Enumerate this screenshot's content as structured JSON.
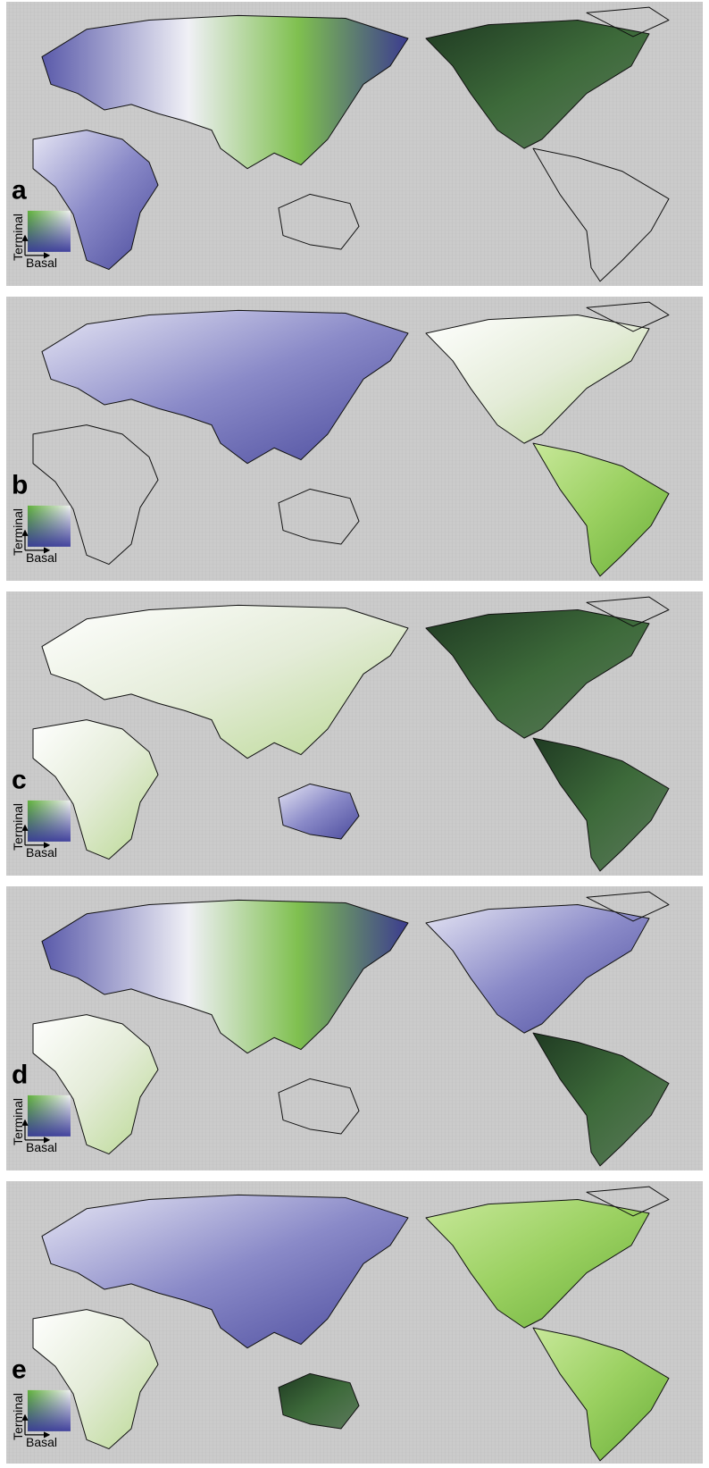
{
  "panels": [
    {
      "label": "a",
      "legend_y": "Terminal",
      "legend_x": "Basal"
    },
    {
      "label": "b",
      "legend_y": "Terminal",
      "legend_x": "Basal"
    },
    {
      "label": "c",
      "legend_y": "Terminal",
      "legend_x": "Basal"
    },
    {
      "label": "d",
      "legend_y": "Terminal",
      "legend_x": "Basal"
    },
    {
      "label": "e",
      "legend_y": "Terminal",
      "legend_x": "Basal"
    }
  ]
}
